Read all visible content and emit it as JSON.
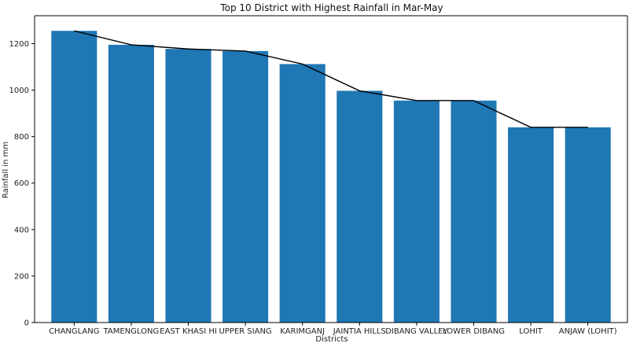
{
  "chart_data": {
    "type": "bar",
    "title": "Top 10 District with Highest Rainfall in Mar-May",
    "xlabel": "Districts",
    "ylabel": "Rainfall in mm",
    "categories": [
      "CHANGLANG",
      "TAMENGLONG",
      "EAST KHASI HI",
      "UPPER SIANG",
      "KARIMGANJ",
      "JAINTIA HILLS",
      "DIBANG VALLEY",
      "LOWER DIBANG",
      "LOHIT",
      "ANJAW (LOHIT)"
    ],
    "values": [
      1255,
      1195,
      1177,
      1168,
      1112,
      997,
      955,
      955,
      840,
      840
    ],
    "ylim": [
      0,
      1320
    ],
    "yticks": [
      0,
      200,
      400,
      600,
      800,
      1000,
      1200
    ],
    "overlay_line": true,
    "grid": false,
    "colors": {
      "bar": "#1f77b4",
      "line": "#000000",
      "axis": "#000000"
    }
  }
}
